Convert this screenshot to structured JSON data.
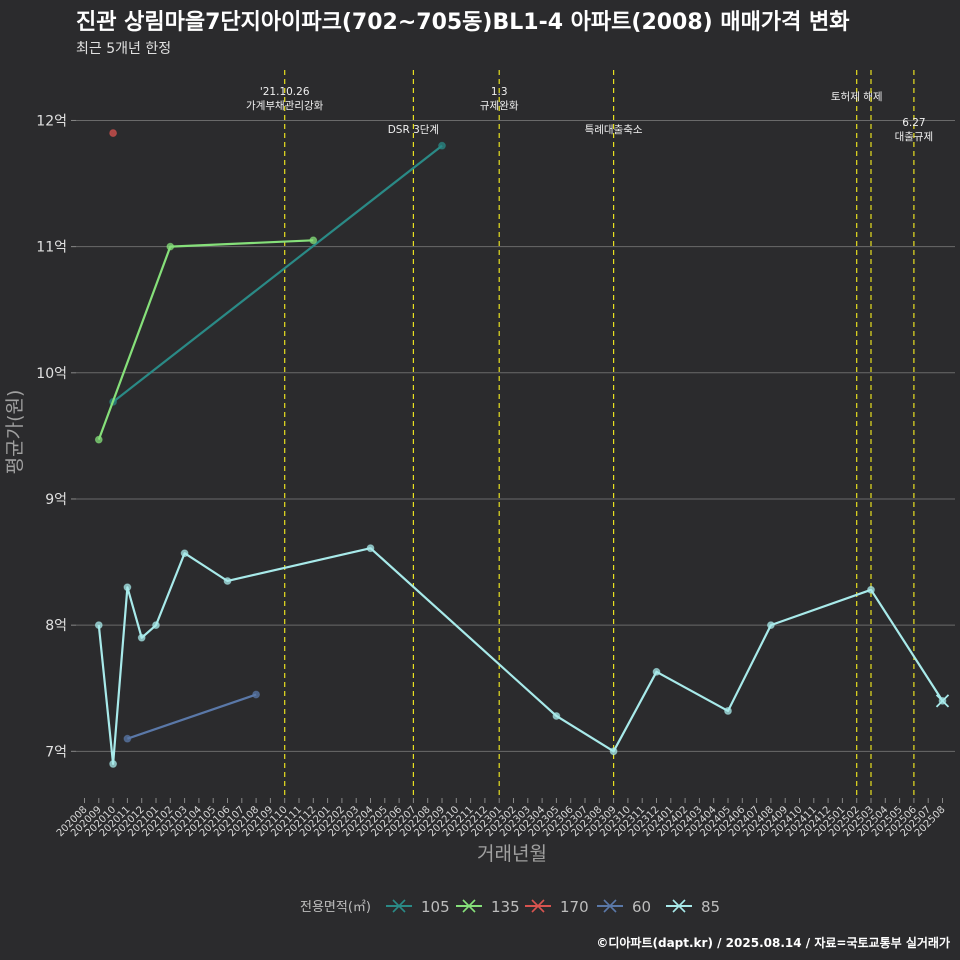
{
  "title": "진관 상림마을7단지아이파크(702~705동)BL1-4 아파트(2008) 매매가격 변화",
  "subtitle": "최근 5개년 한정",
  "caption": "©디아파트(dapt.kr) / 2025.08.14 / 자료=국토교통부 실거래가",
  "chart_data": {
    "type": "line",
    "xlabel": "거래년월",
    "ylabel": "평균가(원)",
    "ylim": [
      6.63,
      12.4
    ],
    "y_ticks": [
      {
        "value": 7,
        "label": "7억"
      },
      {
        "value": 8,
        "label": "8억"
      },
      {
        "value": 9,
        "label": "9억"
      },
      {
        "value": 10,
        "label": "10억"
      },
      {
        "value": 11,
        "label": "11억"
      },
      {
        "value": 12,
        "label": "12억"
      }
    ],
    "categories": [
      "202008",
      "202009",
      "202010",
      "202011",
      "202012",
      "202101",
      "202102",
      "202103",
      "202104",
      "202105",
      "202106",
      "202107",
      "202108",
      "202109",
      "202110",
      "202111",
      "202112",
      "202201",
      "202202",
      "202203",
      "202204",
      "202205",
      "202206",
      "202207",
      "202208",
      "202209",
      "202210",
      "202211",
      "202212",
      "202301",
      "202302",
      "202303",
      "202304",
      "202305",
      "202306",
      "202307",
      "202308",
      "202309",
      "202310",
      "202311",
      "202312",
      "202401",
      "202402",
      "202403",
      "202404",
      "202405",
      "202406",
      "202407",
      "202408",
      "202409",
      "202410",
      "202411",
      "202412",
      "202501",
      "202502",
      "202503",
      "202504",
      "202505",
      "202506",
      "202507",
      "202508"
    ],
    "legend_title": "전용면적(㎡)",
    "series": [
      {
        "name": "105",
        "color": "#2a8a86",
        "points": [
          [
            "202010",
            9.77
          ],
          [
            "202209",
            11.8
          ]
        ]
      },
      {
        "name": "135",
        "color": "#86e07a",
        "points": [
          [
            "202009",
            9.47
          ],
          [
            "202102",
            11.0
          ],
          [
            "202112",
            11.05
          ]
        ]
      },
      {
        "name": "170",
        "color": "#d9534f",
        "points": [
          [
            "202010",
            11.9
          ]
        ]
      },
      {
        "name": "60",
        "color": "#5a78a8",
        "points": [
          [
            "202011",
            7.1
          ],
          [
            "202108",
            7.45
          ]
        ]
      },
      {
        "name": "85",
        "color": "#a8eaea",
        "points": [
          [
            "202009",
            8.0
          ],
          [
            "202010",
            6.9
          ],
          [
            "202011",
            8.3
          ],
          [
            "202012",
            7.9
          ],
          [
            "202101",
            8.0
          ],
          [
            "202103",
            8.57
          ],
          [
            "202106",
            8.35
          ],
          [
            "202204",
            8.61
          ],
          [
            "202305",
            7.28
          ],
          [
            "202309",
            7.0
          ],
          [
            "202312",
            7.63
          ],
          [
            "202405",
            7.32
          ],
          [
            "202408",
            8.0
          ],
          [
            "202503",
            8.28
          ],
          [
            "202508",
            7.4
          ]
        ]
      }
    ],
    "events": [
      {
        "month": "202110",
        "lines": [
          "'21.10.26",
          "가계부채관리강화"
        ],
        "row": 0
      },
      {
        "month": "202207",
        "lines": [
          "DSR 3단계"
        ],
        "row": 2
      },
      {
        "month": "202301",
        "lines": [
          "1.3",
          "규제완화"
        ],
        "row": 0
      },
      {
        "month": "202309",
        "lines": [
          "특례대출축소"
        ],
        "row": 2
      },
      {
        "month": "202502",
        "lines": [
          "토허제 해제"
        ],
        "row": 1
      },
      {
        "month": "202503",
        "lines": [],
        "row": 1
      },
      {
        "month": "202506",
        "lines": [
          "6.27",
          "대출규제"
        ],
        "row": 3
      }
    ],
    "legend_position": "bottom",
    "grid": true
  }
}
